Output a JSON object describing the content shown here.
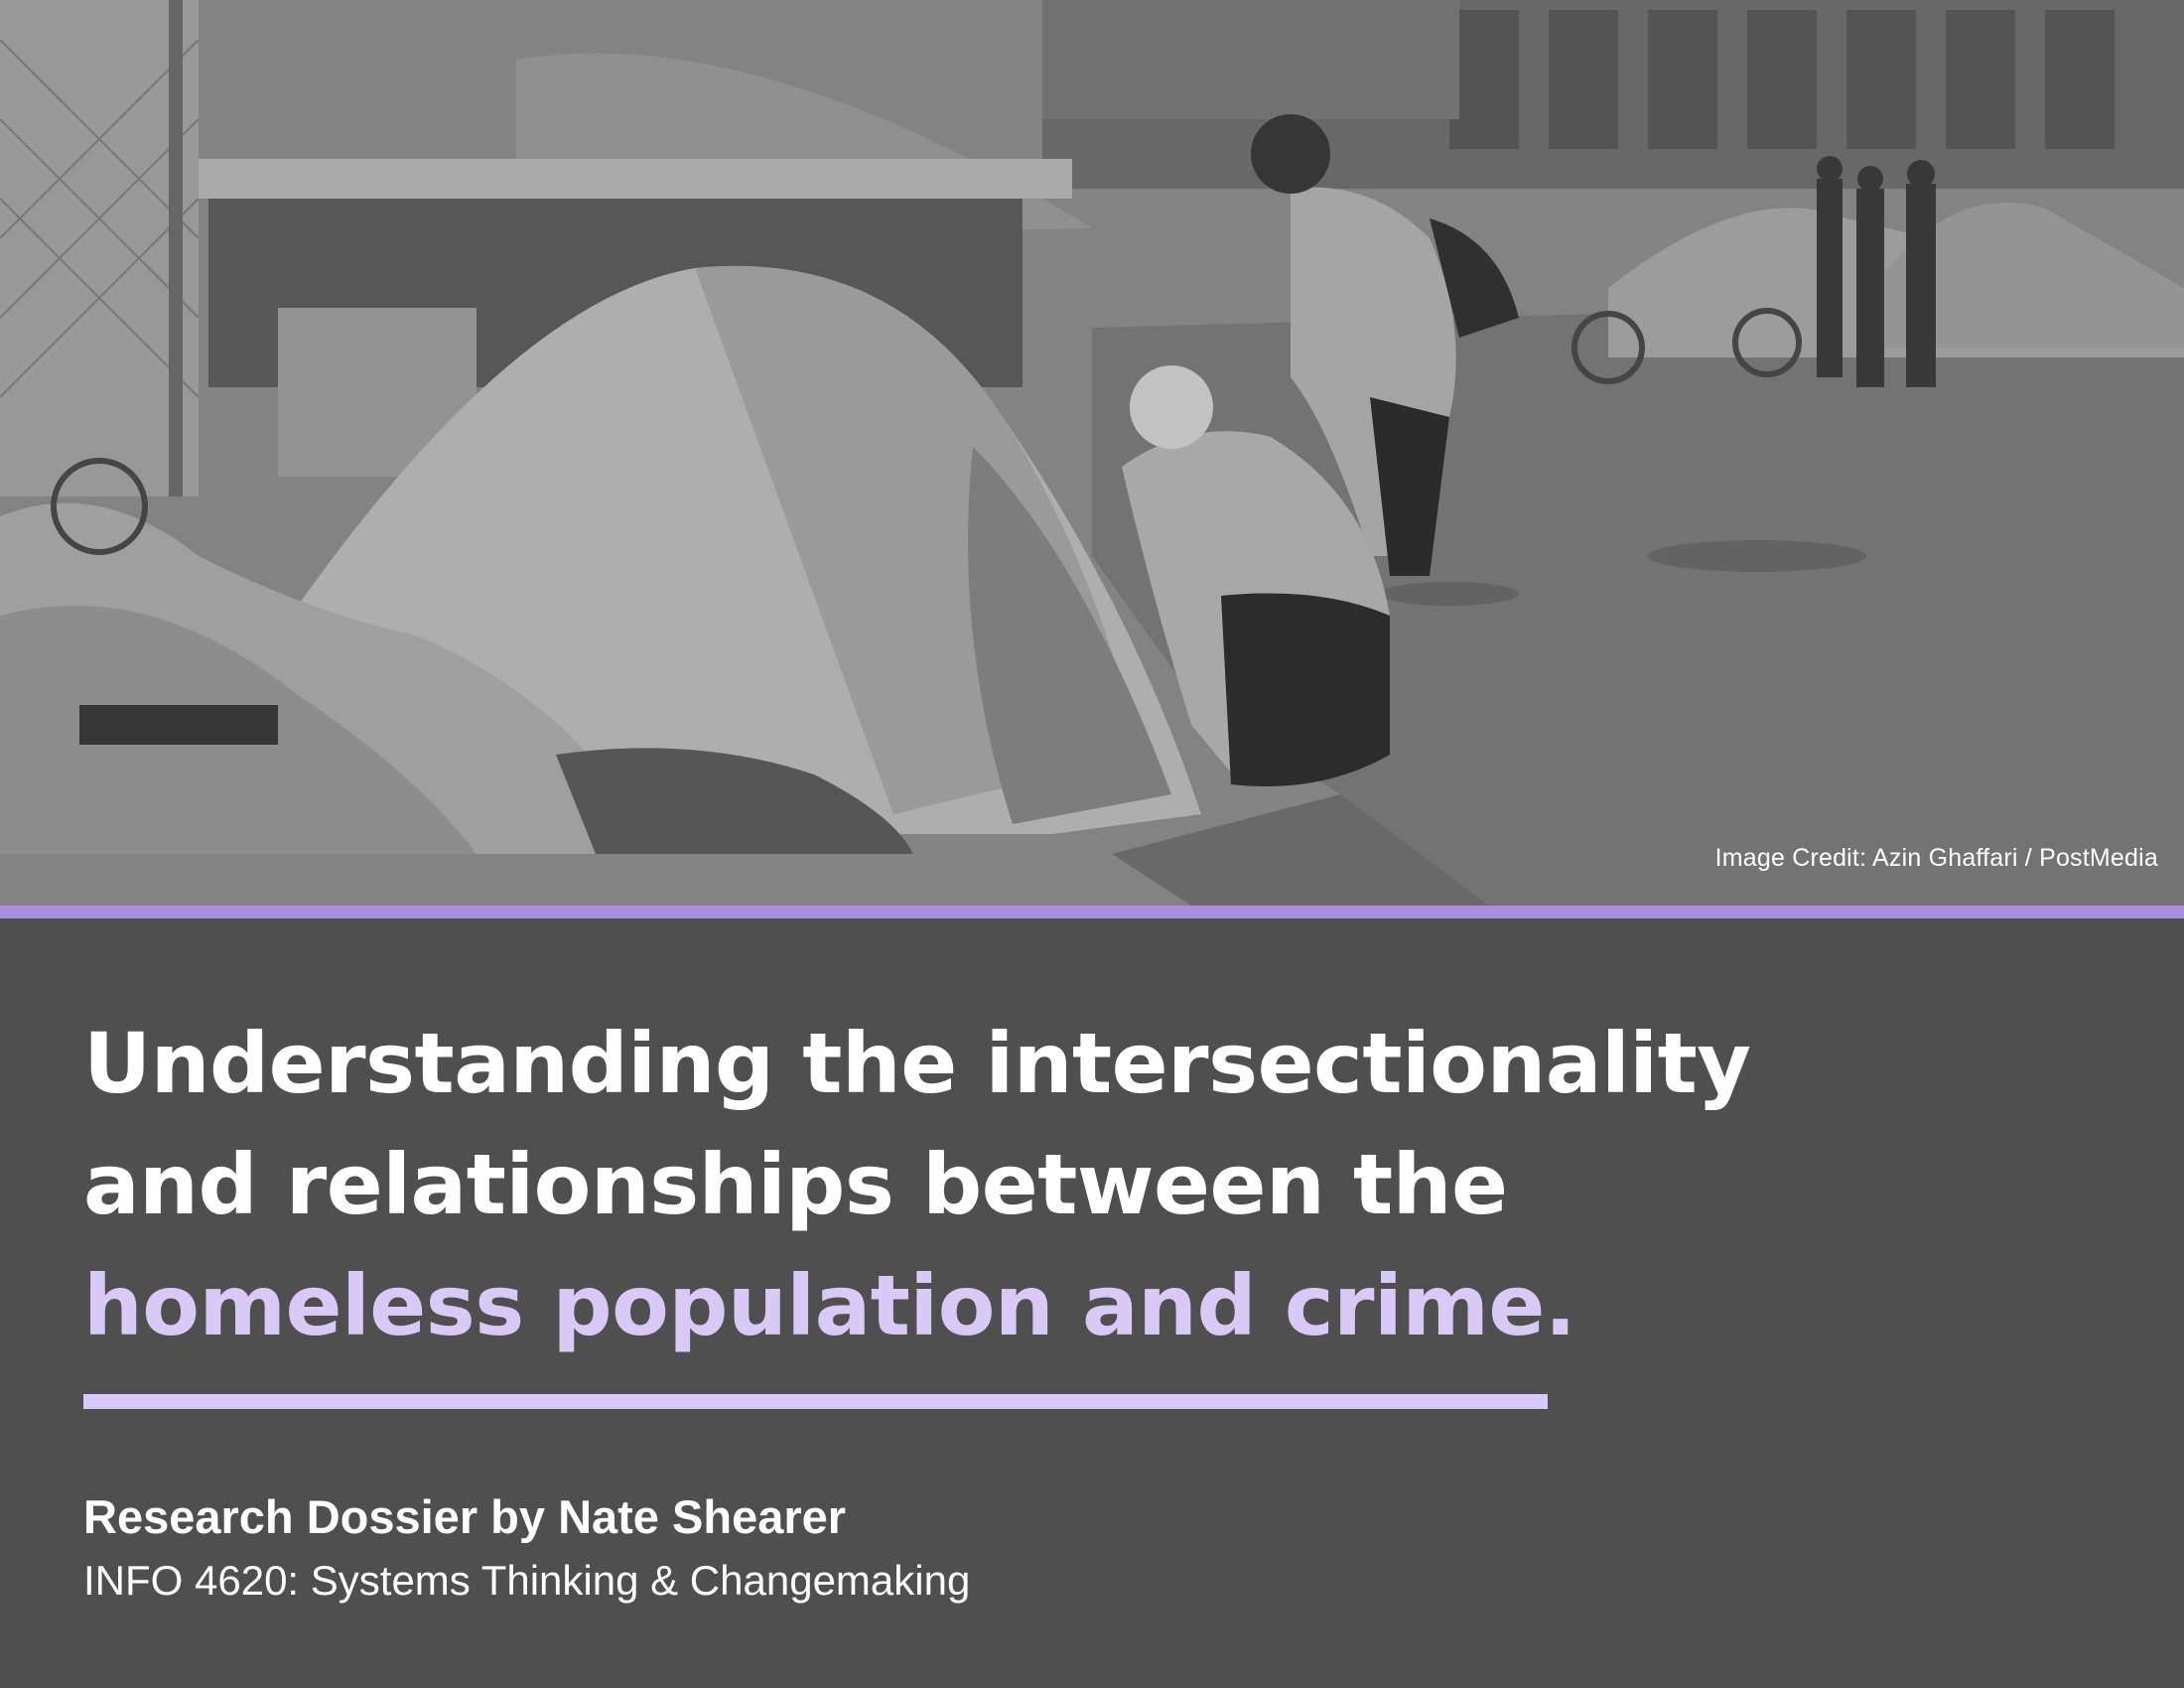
{
  "photo": {
    "credit": "Image Credit:  Azin Ghaffari / PostMedia"
  },
  "headline": {
    "line1": "Understanding the intersectionality",
    "line2": "and relationships between the",
    "line3": "homeless population and crime."
  },
  "byline": "Research Dossier by Nate Shearer",
  "course": "INFO 4620: Systems Thinking & Changemaking",
  "colors": {
    "background": "#4f4f4f",
    "accent_purple": "#a98fe0",
    "highlight_lavender": "#d9c9f7",
    "text": "#ffffff"
  }
}
